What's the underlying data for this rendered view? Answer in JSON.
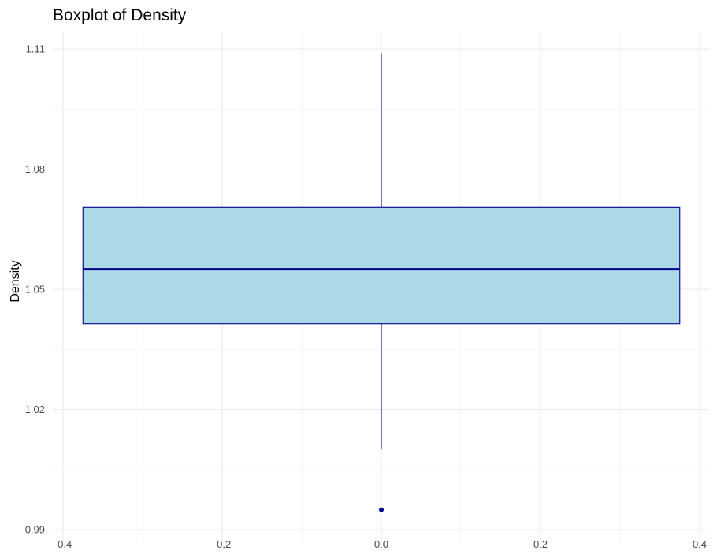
{
  "chart_data": {
    "type": "boxplot",
    "title": "Boxplot of Density",
    "xlabel": "",
    "ylabel": "Density",
    "xlim": [
      -0.4,
      0.4
    ],
    "ylim": [
      0.99,
      1.11
    ],
    "x_ticks": [
      -0.4,
      -0.2,
      0.0,
      0.2,
      0.4
    ],
    "x_tick_labels": [
      "-0.4",
      "-0.2",
      "0.0",
      "0.2",
      "0.4"
    ],
    "y_ticks": [
      0.99,
      1.02,
      1.05,
      1.08,
      1.11
    ],
    "y_tick_labels": [
      "0.99",
      "1.02",
      "1.05",
      "1.08",
      "1.11"
    ],
    "grid": true,
    "box": {
      "x_center": 0.0,
      "x_left": -0.375,
      "x_right": 0.375,
      "whisker_low": 1.0101,
      "q1": 1.0414,
      "median": 1.055,
      "q3": 1.0704,
      "whisker_high": 1.1089,
      "outliers": [
        0.995
      ]
    },
    "colors": {
      "box_fill": "#add8e6",
      "box_stroke": "#00008b",
      "median": "#00008b",
      "outlier": "#00008b"
    }
  }
}
